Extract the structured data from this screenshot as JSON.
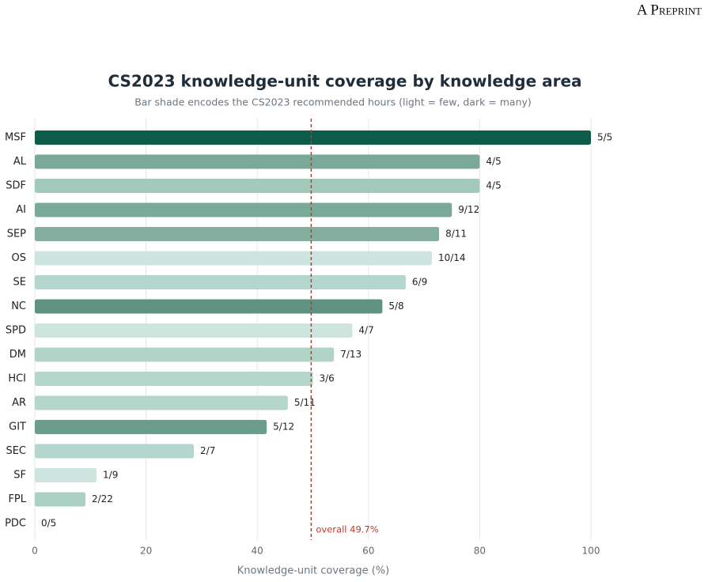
{
  "header": "A Preprint",
  "chart_data": {
    "type": "barh",
    "title": "CS2023 knowledge-unit coverage by knowledge area",
    "subtitle": "Bar shade encodes the CS2023 recommended hours (light = few, dark = many)",
    "x_label": "Knowledge-unit coverage (%)",
    "categories": [
      "MSF",
      "AL",
      "SDF",
      "AI",
      "SEP",
      "OS",
      "SE",
      "NC",
      "SPD",
      "DM",
      "HCI",
      "AR",
      "GIT",
      "SEC",
      "SF",
      "FPL",
      "PDC"
    ],
    "values": [
      100,
      80,
      80,
      75,
      72.7,
      71.4,
      66.7,
      62.5,
      57.1,
      53.8,
      50,
      45.5,
      41.7,
      28.6,
      11.1,
      9.1,
      0
    ],
    "value_labels": [
      "5/5",
      "4/5",
      "4/5",
      "9/12",
      "8/11",
      "10/14",
      "6/9",
      "5/8",
      "4/7",
      "7/13",
      "3/6",
      "5/11",
      "5/12",
      "2/7",
      "1/9",
      "2/22",
      "0/5"
    ],
    "colors": [
      "#0d5c4a",
      "#7aa99a",
      "#a3c9bc",
      "#7aa99a",
      "#82ad9f",
      "#cde5de",
      "#b5d6cc",
      "#5f9282",
      "#cde5de",
      "#b2d3c8",
      "#b5d6cc",
      "#b5d6cc",
      "#6c9c8c",
      "#b5d6cc",
      "#cde5de",
      "#aacfc3",
      "#cde5de"
    ],
    "xlim": [
      0,
      100
    ],
    "xticks": [
      0,
      20,
      40,
      60,
      80,
      100
    ],
    "grid": true,
    "reference_line": {
      "value": 49.7,
      "label": "overall 49.7%",
      "color": "#c0392b"
    }
  }
}
